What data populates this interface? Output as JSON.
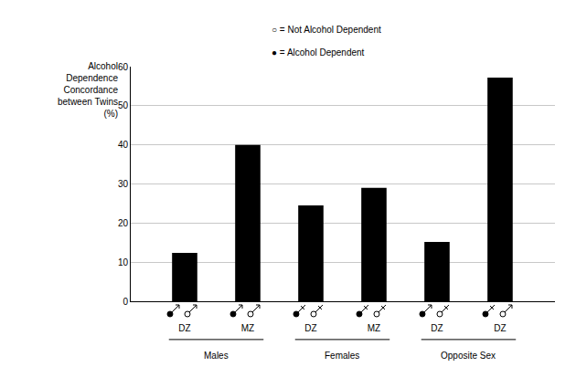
{
  "chart_data": {
    "type": "bar",
    "categories": [
      "DZ",
      "MZ",
      "DZ",
      "MZ",
      "DZ",
      "DZ"
    ],
    "groups": [
      "Males",
      "Males",
      "Females",
      "Females",
      "Opposite Sex",
      "Opposite Sex"
    ],
    "values": [
      12.4,
      40,
      24.5,
      29,
      15.2,
      57.2
    ],
    "color": "#000000",
    "ylim": [
      0,
      60
    ],
    "yticks": [
      0,
      10,
      20,
      30,
      40,
      50,
      60
    ],
    "grid": true,
    "y_label": "Alcohol\nDependence\nConcordance\nbetween Twins\n(%)",
    "annotations": [
      "○ = Not Alcohol Dependent",
      "● = Alcohol Dependent"
    ],
    "pairs": [
      [
        "male",
        "male"
      ],
      [
        "male",
        "male"
      ],
      [
        "female",
        "female"
      ],
      [
        "female",
        "female"
      ],
      [
        "male",
        "female"
      ],
      [
        "female",
        "male"
      ]
    ]
  }
}
